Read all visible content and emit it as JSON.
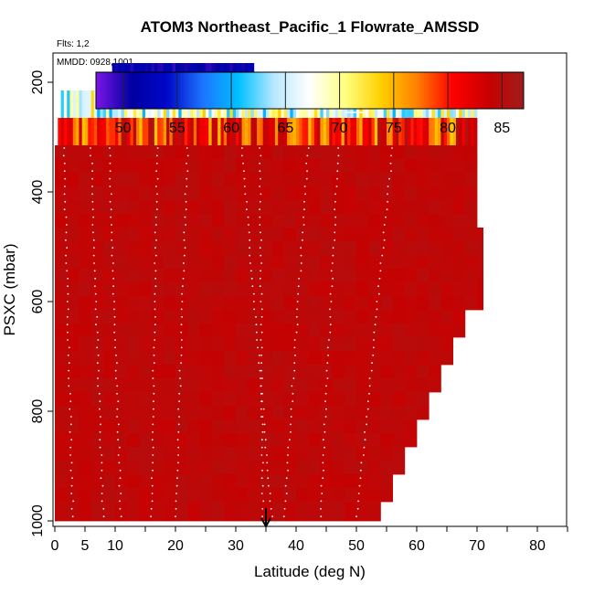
{
  "chart_data": {
    "type": "heatmap",
    "title": "ATOM3 Northeast_Pacific_1 Flowrate_AMSSD",
    "flights_label": "Flts: 1,2",
    "date_label": "MMDD: 0928,1001",
    "xlabel": "Latitude (deg N)",
    "ylabel": "PSXC (mbar)",
    "xlim": [
      0,
      85
    ],
    "ylim": [
      1000,
      0
    ],
    "x_ticks": [
      0,
      5,
      10,
      20,
      30,
      40,
      50,
      60,
      70,
      80
    ],
    "x_ticks_unlabeled": [
      15,
      25,
      35,
      45,
      55,
      65,
      75,
      85
    ],
    "y_ticks": [
      200,
      400,
      600,
      800,
      1000
    ],
    "colorbar": {
      "min": 47.5,
      "max": 87,
      "ticks": [
        50,
        55,
        60,
        65,
        70,
        75,
        80,
        85
      ],
      "colors": [
        "#7b16e6",
        "#0000a0",
        "#0008c8",
        "#1d74ff",
        "#00c0ff",
        "#b8e8ff",
        "#ffffff",
        "#ffff80",
        "#ffd000",
        "#ff8000",
        "#ff0000",
        "#c80000",
        "#a01c1c"
      ]
    },
    "arrow_latitude": 35,
    "bands": [
      {
        "p_top": 165,
        "p_bottom": 215,
        "value": 51,
        "x_start": 9.5,
        "x_end": 33
      },
      {
        "p_top": 215,
        "p_bottom": 265,
        "value": 67,
        "x_start": 1,
        "x_end": 70
      },
      {
        "p_top": 265,
        "p_bottom": 315,
        "value": 80,
        "x_start": 0.5,
        "x_end": 70
      },
      {
        "p_top": 315,
        "p_bottom": 1000,
        "value": 84.5,
        "x_start": 0,
        "x_end": 71
      }
    ],
    "right_edge": [
      {
        "p_top": 315,
        "p_bottom": 465,
        "x_end": 70
      },
      {
        "p_top": 465,
        "p_bottom": 615,
        "x_end": 71
      },
      {
        "p_top": 615,
        "p_bottom": 665,
        "x_end": 68
      },
      {
        "p_top": 665,
        "p_bottom": 715,
        "x_end": 66
      },
      {
        "p_top": 715,
        "p_bottom": 765,
        "x_end": 64
      },
      {
        "p_top": 765,
        "p_bottom": 815,
        "x_end": 62
      },
      {
        "p_top": 815,
        "p_bottom": 865,
        "x_end": 60
      },
      {
        "p_top": 865,
        "p_bottom": 915,
        "x_end": 58
      },
      {
        "p_top": 915,
        "p_bottom": 965,
        "x_end": 56
      },
      {
        "p_top": 965,
        "p_bottom": 1000,
        "x_end": 54
      }
    ]
  }
}
